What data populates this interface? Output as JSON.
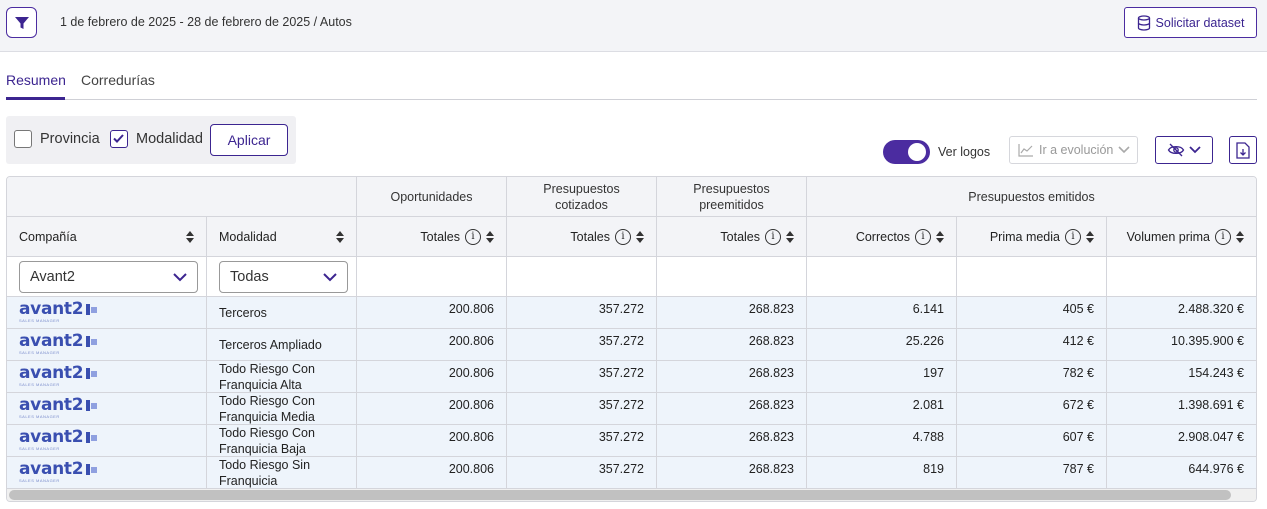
{
  "header": {
    "breadcrumb": "1 de febrero de 2025 - 28 de febrero de 2025 / Autos",
    "dataset_button": "Solicitar dataset"
  },
  "tabs": [
    {
      "label": "Resumen",
      "active": true
    },
    {
      "label": "Corredurías",
      "active": false
    }
  ],
  "filters": {
    "provincia": {
      "label": "Provincia",
      "checked": false
    },
    "modalidad": {
      "label": "Modalidad",
      "checked": true
    },
    "apply_label": "Aplicar"
  },
  "toolbar": {
    "logos_label": "Ver logos",
    "logos_on": true,
    "evolution_label": "Ir a evolución"
  },
  "table": {
    "groups": {
      "oportunidades": "Oportunidades",
      "cotizados": "Presupuestos cotizados",
      "preemitidos": "Presupuestos preemitidos",
      "emitidos": "Presupuestos emitidos"
    },
    "columns": {
      "compania": "Compañía",
      "modalidad": "Modalidad",
      "op_totales": "Totales",
      "cot_totales": "Totales",
      "pre_totales": "Totales",
      "correctos": "Correctos",
      "prima_media": "Prima media",
      "volumen_prima": "Volumen prima"
    },
    "filter_values": {
      "compania": "Avant2",
      "modalidad": "Todas"
    },
    "logo": {
      "text": "avant2",
      "sub": "SALES MANAGER"
    },
    "rows": [
      {
        "modalidad": "Terceros",
        "oportunidades": "200.806",
        "cotizados": "357.272",
        "preemitidos": "268.823",
        "correctos": "6.141",
        "prima_media": "405 €",
        "volumen_prima": "2.488.320 €"
      },
      {
        "modalidad": "Terceros Ampliado",
        "oportunidades": "200.806",
        "cotizados": "357.272",
        "preemitidos": "268.823",
        "correctos": "25.226",
        "prima_media": "412 €",
        "volumen_prima": "10.395.900 €"
      },
      {
        "modalidad": "Todo Riesgo Con Franquicia Alta",
        "oportunidades": "200.806",
        "cotizados": "357.272",
        "preemitidos": "268.823",
        "correctos": "197",
        "prima_media": "782 €",
        "volumen_prima": "154.243 €"
      },
      {
        "modalidad": "Todo Riesgo Con Franquicia Media",
        "oportunidades": "200.806",
        "cotizados": "357.272",
        "preemitidos": "268.823",
        "correctos": "2.081",
        "prima_media": "672 €",
        "volumen_prima": "1.398.691 €"
      },
      {
        "modalidad": "Todo Riesgo Con Franquicia Baja",
        "oportunidades": "200.806",
        "cotizados": "357.272",
        "preemitidos": "268.823",
        "correctos": "4.788",
        "prima_media": "607 €",
        "volumen_prima": "2.908.047 €"
      },
      {
        "modalidad": "Todo Riesgo Sin Franquicia",
        "oportunidades": "200.806",
        "cotizados": "357.272",
        "preemitidos": "268.823",
        "correctos": "819",
        "prima_media": "787 €",
        "volumen_prima": "644.976 €"
      }
    ]
  },
  "colors": {
    "accent": "#3c2590",
    "row_bg": "#eef4fb",
    "header_bg": "#f3f4f7"
  }
}
